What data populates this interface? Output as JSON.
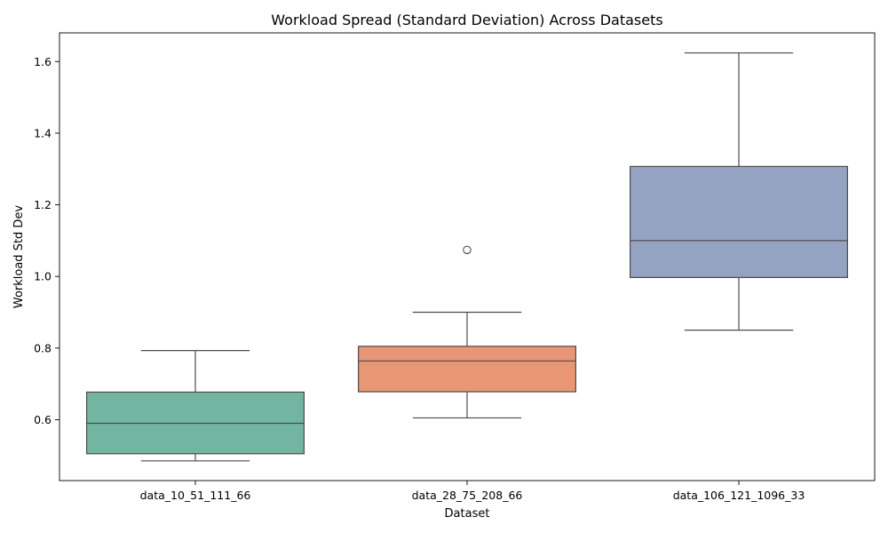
{
  "chart_data": {
    "type": "box",
    "title": "Workload Spread (Standard Deviation) Across Datasets",
    "xlabel": "Dataset",
    "ylabel": "Workload Std Dev",
    "ylim": [
      0.43,
      1.68
    ],
    "yticks": [
      0.6,
      0.8,
      1.0,
      1.2,
      1.4,
      1.6
    ],
    "ytick_labels": [
      "0.6",
      "0.8",
      "1.0",
      "1.2",
      "1.4",
      "1.6"
    ],
    "grid": false,
    "categories": [
      "data_10_51_111_66",
      "data_28_75_208_66",
      "data_106_121_1096_33"
    ],
    "boxes": [
      {
        "category": "data_10_51_111_66",
        "whisker_low": 0.485,
        "q1": 0.505,
        "median": 0.59,
        "q3": 0.677,
        "whisker_high": 0.793,
        "outliers": [],
        "color": "#72b6a1"
      },
      {
        "category": "data_28_75_208_66",
        "whisker_low": 0.605,
        "q1": 0.678,
        "median": 0.764,
        "q3": 0.805,
        "whisker_high": 0.9,
        "outliers": [
          1.074
        ],
        "color": "#e99675"
      },
      {
        "category": "data_106_121_1096_33",
        "whisker_low": 0.85,
        "q1": 0.997,
        "median": 1.1,
        "q3": 1.307,
        "whisker_high": 1.624,
        "outliers": [],
        "color": "#95a3c3"
      }
    ]
  }
}
